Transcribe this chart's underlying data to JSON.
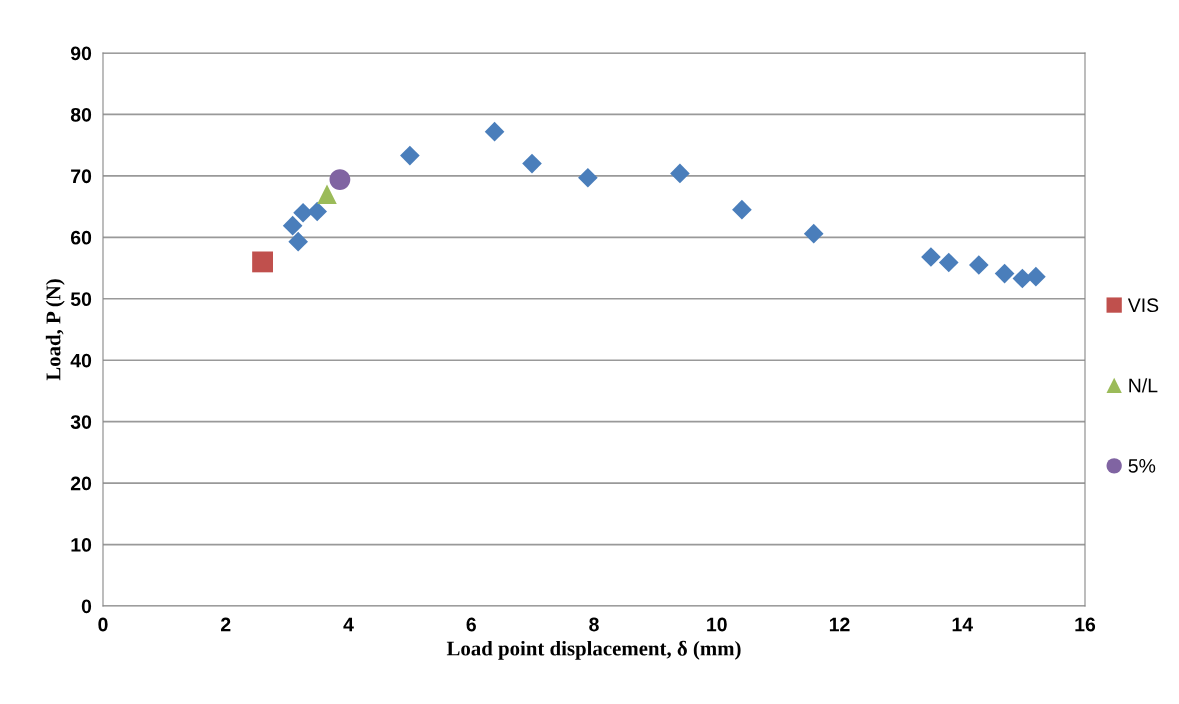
{
  "chart_data": {
    "type": "scatter",
    "xlabel": "Load point displacement, δ (mm)",
    "ylabel": "Load, P (N)",
    "xlim": [
      0,
      16
    ],
    "xticks": [
      0,
      2,
      4,
      6,
      8,
      10,
      12,
      14,
      16
    ],
    "ylim": [
      0,
      90
    ],
    "yticks": [
      0,
      10,
      20,
      30,
      40,
      50,
      60,
      70,
      80,
      90
    ],
    "grid": "y",
    "legend": "right",
    "series": [
      {
        "color": "#4a7ebb",
        "marker": "diamond",
        "x": [
          3.18,
          3.09,
          3.26,
          3.49,
          5.0,
          6.38,
          6.99,
          7.9,
          9.4,
          10.41,
          11.58,
          13.49,
          13.78,
          14.27,
          14.69,
          14.98,
          15.2
        ],
        "values": [
          59.3,
          61.9,
          64.0,
          64.2,
          73.3,
          77.2,
          72.0,
          69.7,
          70.4,
          64.5,
          60.6,
          56.8,
          55.9,
          55.5,
          54.1,
          53.3,
          53.6
        ]
      },
      {
        "name": "VIS",
        "color": "#c0504d",
        "marker": "square",
        "x": [
          2.6
        ],
        "values": [
          56.0
        ]
      },
      {
        "name": "N/L",
        "color": "#9bbb59",
        "marker": "triangle",
        "x": [
          3.65
        ],
        "values": [
          67.0
        ]
      },
      {
        "name": "5%",
        "color": "#8064a2",
        "marker": "circle",
        "x": [
          3.86
        ],
        "values": [
          69.4
        ]
      }
    ]
  }
}
